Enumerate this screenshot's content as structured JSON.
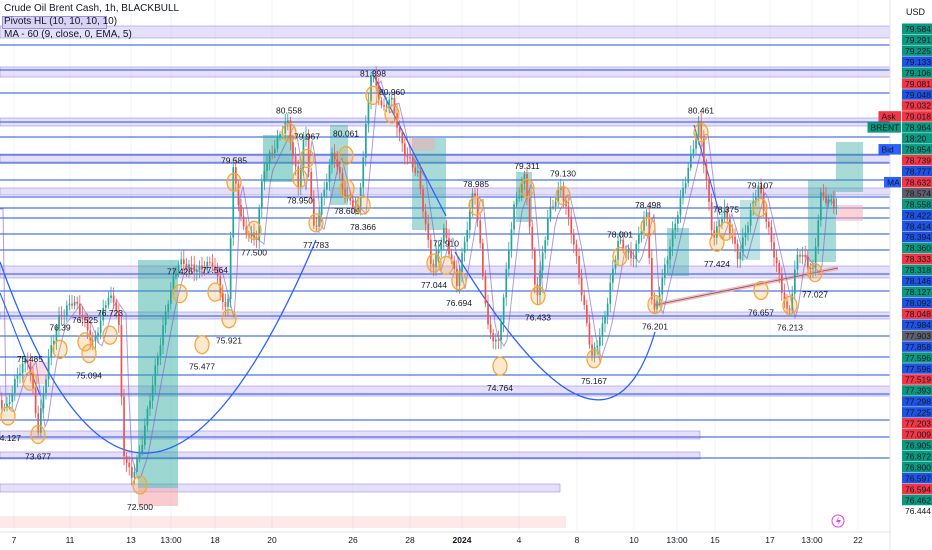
{
  "header": {
    "title": "Crude Oil Brent Cash, 1h, BLACKBULL",
    "indicator_pivots": "Pivots HL (10, 10, 10, 10)",
    "indicator_ma": "MA - 60 (9, close, 0, EMA, 5)",
    "currency": "USD"
  },
  "colors": {
    "up": "#26a69a",
    "down": "#ef5350",
    "ma_line": "#7e57c2",
    "arc_line": "#2962ff",
    "level_line": "#1e53e5",
    "zone_fill": "#d1c4f5",
    "bull_box": "#26a69a",
    "bear_box": "#f7a8ad",
    "pivot_circle": "#f2a93b"
  },
  "chart_data": {
    "type": "candlestick",
    "ylim": [
      76.38,
      79.68
    ],
    "x_ticks": [
      "7",
      "11",
      "13",
      "13:00",
      "18",
      "20",
      "26",
      "28",
      "2024",
      "4",
      "8",
      "10",
      "13:00",
      "15",
      "17",
      "13:00",
      "22"
    ],
    "price_levels": [
      {
        "value": 79.584,
        "color": "#089981"
      },
      {
        "value": 79.291,
        "color": "#089981"
      },
      {
        "value": 79.225,
        "color": "#089981"
      },
      {
        "value": 79.133,
        "color": "#1e53e5"
      },
      {
        "value": 79.106,
        "color": "#089981"
      },
      {
        "value": 79.081,
        "color": "#f23645"
      },
      {
        "value": 79.048,
        "color": "#1e53e5"
      },
      {
        "value": 79.032,
        "color": "#f23645"
      },
      {
        "value": 79.018,
        "color": "#f23645"
      },
      {
        "value": 78.964,
        "color": "#089981"
      },
      {
        "value": 78.954,
        "color": "#1e53e5"
      },
      {
        "value": 78.739,
        "color": "#089981"
      },
      {
        "value": 78.777,
        "color": "#f23645"
      },
      {
        "value": 78.632,
        "color": "#1e53e5"
      },
      {
        "value": 78.574,
        "color": "#f23645"
      },
      {
        "value": 78.558,
        "color": "#5d606b"
      },
      {
        "value": 78.422,
        "color": "#089981"
      },
      {
        "value": 78.414,
        "color": "#1e53e5"
      },
      {
        "value": 78.394,
        "color": "#1e53e5"
      },
      {
        "value": 78.36,
        "color": "#1e53e5"
      },
      {
        "value": 78.333,
        "color": "#089981"
      },
      {
        "value": 78.318,
        "color": "#f23645"
      },
      {
        "value": 78.146,
        "color": "#089981"
      },
      {
        "value": 78.127,
        "color": "#1e53e5"
      },
      {
        "value": 78.092,
        "color": "#089981"
      },
      {
        "value": 78.048,
        "color": "#1e53e5"
      },
      {
        "value": 77.984,
        "color": "#f23645"
      },
      {
        "value": 77.903,
        "color": "#1e53e5"
      },
      {
        "value": 77.858,
        "color": "#5d606b"
      },
      {
        "value": 77.596,
        "color": "#1e53e5"
      },
      {
        "value": 77.596,
        "color": "#089981"
      },
      {
        "value": 77.519,
        "color": "#1e53e5"
      },
      {
        "value": 77.393,
        "color": "#f23645"
      },
      {
        "value": 77.298,
        "color": "#089981"
      },
      {
        "value": 77.225,
        "color": "#1e53e5"
      },
      {
        "value": 77.203,
        "color": "#1e53e5"
      },
      {
        "value": 77.009,
        "color": "#f23645"
      },
      {
        "value": 76.905,
        "color": "#f23645"
      },
      {
        "value": 76.872,
        "color": "#089981"
      },
      {
        "value": 76.8,
        "color": "#089981"
      },
      {
        "value": 76.597,
        "color": "#089981"
      },
      {
        "value": 76.594,
        "color": "#1e53e5"
      },
      {
        "value": 76.462,
        "color": "#f23645"
      },
      {
        "value": 76.444,
        "color": "#089981"
      }
    ],
    "price_display": [
      "79.584",
      "79.291",
      "79.225",
      "79.133",
      "79.106",
      "79.081",
      "79.048",
      "79.032",
      "79.018",
      "78.964",
      "18:20",
      "78.954",
      "78.739",
      "78.777",
      "78.632",
      "78.574",
      "78.558",
      "78.422",
      "78.414",
      "78.394",
      "78.360",
      "78.333",
      "78.318",
      "78.146",
      "78.127",
      "78.092",
      "78.048",
      "77.984",
      "77.903",
      "77.858",
      "77.596",
      "77.596",
      "77.519",
      "77.393",
      "77.298",
      "77.225",
      "77.203",
      "77.009",
      "76.905",
      "76.872",
      "76.800",
      "76.597",
      "76.594",
      "76.462",
      "76.444"
    ],
    "axis_tags": [
      {
        "text": "Ask",
        "value": 79.018,
        "color": "#f23645"
      },
      {
        "text": "BRENT",
        "value": 78.964,
        "color": "#089981"
      },
      {
        "text": "Bid",
        "value": 78.954,
        "color": "#2962ff"
      },
      {
        "text": "MA",
        "value": 78.632,
        "color": "#2962ff"
      }
    ],
    "pivots": [
      {
        "label": "81.398",
        "x": 373,
        "value": 79.455,
        "pos": "above"
      },
      {
        "label": "80.960",
        "x": 392,
        "value": 79.33,
        "pos": "above"
      },
      {
        "label": "80.558",
        "x": 289,
        "value": 79.205,
        "pos": "above"
      },
      {
        "label": "80.461",
        "x": 701,
        "value": 79.205,
        "pos": "above"
      },
      {
        "label": "80.061",
        "x": 346,
        "value": 79.05,
        "pos": "above"
      },
      {
        "label": "79.967",
        "x": 307,
        "value": 79.03,
        "pos": "above"
      },
      {
        "label": "79.585",
        "x": 234,
        "value": 78.87,
        "pos": "above"
      },
      {
        "label": "79.311",
        "x": 527,
        "value": 78.83,
        "pos": "above"
      },
      {
        "label": "79.130",
        "x": 563,
        "value": 78.78,
        "pos": "above"
      },
      {
        "label": "78.985",
        "x": 476,
        "value": 78.71,
        "pos": "above"
      },
      {
        "label": "79.107",
        "x": 760,
        "value": 78.7,
        "pos": "above"
      },
      {
        "label": "78.950",
        "x": 300,
        "value": 78.6,
        "pos": "below"
      },
      {
        "label": "78.498",
        "x": 648,
        "value": 78.57,
        "pos": "above"
      },
      {
        "label": "78.375",
        "x": 726,
        "value": 78.54,
        "pos": "above"
      },
      {
        "label": "78.609",
        "x": 347,
        "value": 78.53,
        "pos": "below"
      },
      {
        "label": "78.366",
        "x": 363,
        "value": 78.42,
        "pos": "below"
      },
      {
        "label": "78.001",
        "x": 620,
        "value": 78.37,
        "pos": "above"
      },
      {
        "label": "77.910",
        "x": 446,
        "value": 78.31,
        "pos": "above"
      },
      {
        "label": "77.426",
        "x": 180,
        "value": 78.12,
        "pos": "above"
      },
      {
        "label": "77.564",
        "x": 215,
        "value": 78.13,
        "pos": "above"
      },
      {
        "label": "77.783",
        "x": 316,
        "value": 78.3,
        "pos": "below"
      },
      {
        "label": "76.723",
        "x": 110,
        "value": 77.84,
        "pos": "above"
      },
      {
        "label": "77.500",
        "x": 254,
        "value": 78.25,
        "pos": "below"
      },
      {
        "label": "76.525",
        "x": 85,
        "value": 77.795,
        "pos": "above"
      },
      {
        "label": "76.39",
        "x": 60,
        "value": 77.745,
        "pos": "above"
      },
      {
        "label": "77.424",
        "x": 717,
        "value": 78.17,
        "pos": "below"
      },
      {
        "label": "77.044",
        "x": 434,
        "value": 78.03,
        "pos": "below"
      },
      {
        "label": "77.027",
        "x": 815,
        "value": 77.965,
        "pos": "below"
      },
      {
        "label": "76.694",
        "x": 459,
        "value": 77.91,
        "pos": "below"
      },
      {
        "label": "76.657",
        "x": 761,
        "value": 77.845,
        "pos": "below"
      },
      {
        "label": "76.433",
        "x": 538,
        "value": 77.81,
        "pos": "below"
      },
      {
        "label": "76.201",
        "x": 655,
        "value": 77.75,
        "pos": "below"
      },
      {
        "label": "76.213",
        "x": 790,
        "value": 77.745,
        "pos": "below"
      },
      {
        "label": "75.485",
        "x": 30,
        "value": 77.53,
        "pos": "above"
      },
      {
        "label": "75.921",
        "x": 229,
        "value": 77.655,
        "pos": "below"
      },
      {
        "label": "75.477",
        "x": 202,
        "value": 77.48,
        "pos": "below"
      },
      {
        "label": "75.094",
        "x": 89,
        "value": 77.42,
        "pos": "below"
      },
      {
        "label": "75.167",
        "x": 594,
        "value": 77.385,
        "pos": "below"
      },
      {
        "label": "74.764",
        "x": 500,
        "value": 77.335,
        "pos": "below"
      },
      {
        "label": "74.127",
        "x": 8,
        "value": 77.0,
        "pos": "below"
      },
      {
        "label": "73.677",
        "x": 38,
        "value": 76.875,
        "pos": "below"
      },
      {
        "label": "72.500",
        "x": 140,
        "value": 76.535,
        "pos": "below"
      }
    ]
  }
}
